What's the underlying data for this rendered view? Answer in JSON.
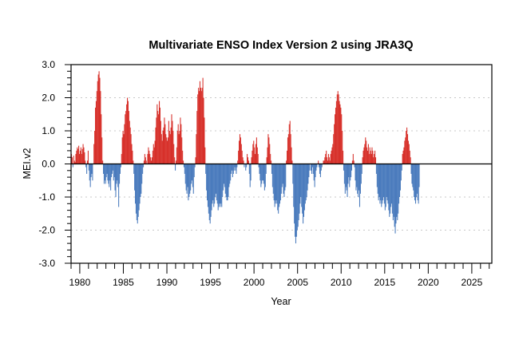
{
  "chart_data": {
    "type": "bar",
    "title": "Multivariate ENSO Index Version 2 using JRA3Q",
    "xlabel": "Year",
    "ylabel": "MEI.v2",
    "xlim": [
      1979,
      2027.3
    ],
    "ylim": [
      -3.0,
      3.0
    ],
    "x_tick_labels": [
      "1980",
      "1985",
      "1990",
      "1995",
      "2000",
      "2005",
      "2010",
      "2015",
      "2020",
      "2025"
    ],
    "x_ticks": [
      1980,
      1985,
      1990,
      1995,
      2000,
      2005,
      2010,
      2015,
      2020,
      2025
    ],
    "y_tick_labels": [
      "3.0",
      "2.0",
      "1.0",
      "0.0",
      "-1.0",
      "-2.0",
      "-3.0"
    ],
    "y_ticks": [
      3.0,
      2.0,
      1.0,
      0.0,
      -1.0,
      -2.0,
      -3.0
    ],
    "grid": "horizontal-dotted",
    "positive_color": "#d7302a",
    "negative_color": "#4a7bbd",
    "start_year": 1979,
    "values_per_year": 12,
    "series": [
      {
        "name": "MEI.v2",
        "values": [
          0.3,
          0.2,
          -0.1,
          0.25,
          0.1,
          0.05,
          0.3,
          0.4,
          0.5,
          0.45,
          0.55,
          0.3,
          0.4,
          0.5,
          0.3,
          0.45,
          0.6,
          0.5,
          0.35,
          0.1,
          -0.1,
          -0.3,
          0.1,
          0.4,
          -0.2,
          -0.5,
          -0.7,
          -0.4,
          -0.3,
          -0.5,
          0.0,
          0.6,
          1.0,
          1.7,
          1.9,
          2.2,
          2.5,
          2.7,
          2.8,
          2.6,
          2.2,
          1.5,
          0.8,
          0.1,
          -0.3,
          -0.6,
          -0.5,
          -0.6,
          -0.4,
          -0.3,
          -0.5,
          -0.6,
          -0.7,
          -0.5,
          -0.8,
          -0.4,
          -0.3,
          -0.2,
          -0.5,
          -0.4,
          -0.8,
          -1.0,
          -0.6,
          -0.5,
          -0.7,
          -1.3,
          -0.6,
          -0.3,
          -0.1,
          0.3,
          0.8,
          1.0,
          0.9,
          1.2,
          1.5,
          1.6,
          1.8,
          2.0,
          1.9,
          1.6,
          1.3,
          1.1,
          0.9,
          0.6,
          0.4,
          0.1,
          -0.3,
          -0.8,
          -1.2,
          -1.5,
          -1.7,
          -1.8,
          -1.6,
          -1.4,
          -1.2,
          -1.0,
          -0.9,
          -0.6,
          -0.3,
          -0.1,
          0.1,
          0.3,
          0.2,
          0.1,
          0.0,
          0.3,
          0.5,
          0.4,
          0.3,
          0.2,
          0.1,
          0.2,
          0.4,
          0.6,
          0.5,
          0.7,
          1.1,
          1.4,
          1.8,
          1.6,
          1.5,
          1.9,
          1.7,
          1.3,
          0.9,
          0.7,
          1.0,
          1.1,
          1.4,
          1.2,
          0.9,
          0.8,
          0.7,
          0.8,
          1.3,
          1.0,
          0.9,
          1.1,
          1.5,
          1.3,
          1.0,
          0.6,
          0.2,
          -0.2,
          0.1,
          0.5,
          1.0,
          1.2,
          0.9,
          1.0,
          1.4,
          1.2,
          0.8,
          0.4,
          0.1,
          -0.1,
          -0.3,
          -0.6,
          -0.8,
          -0.9,
          -0.7,
          -1.1,
          -1.0,
          -0.9,
          -0.8,
          -0.6,
          -0.5,
          -0.7,
          -0.9,
          -0.4,
          -0.1,
          0.2,
          0.9,
          1.6,
          2.1,
          2.3,
          2.2,
          2.5,
          2.3,
          2.2,
          2.3,
          2.6,
          2.0,
          1.4,
          0.5,
          -0.3,
          -0.8,
          -1.1,
          -1.3,
          -1.5,
          -1.7,
          -1.8,
          -1.6,
          -1.4,
          -1.2,
          -1.1,
          -1.3,
          -1.2,
          -1.0,
          -0.9,
          -1.1,
          -1.2,
          -1.4,
          -1.3,
          -1.2,
          -1.3,
          -1.2,
          -1.3,
          -1.0,
          -0.8,
          -0.6,
          -0.7,
          -0.9,
          -1.0,
          -1.1,
          -1.1,
          -1.0,
          -0.7,
          -0.6,
          -0.5,
          -0.3,
          -0.2,
          -0.4,
          -0.3,
          -0.2,
          -0.1,
          -0.2,
          -0.3,
          -0.1,
          0.1,
          0.4,
          0.7,
          0.9,
          0.8,
          0.6,
          0.4,
          0.2,
          0.1,
          -0.1,
          0.0,
          -0.2,
          -0.1,
          0.3,
          0.2,
          0.1,
          -0.3,
          -0.7,
          -0.5,
          0.2,
          0.4,
          0.6,
          0.7,
          0.5,
          0.3,
          0.6,
          0.8,
          0.5,
          0.3,
          -0.1,
          -0.3,
          -0.5,
          -0.7,
          -0.6,
          -0.5,
          -0.5,
          -0.6,
          -0.8,
          -0.7,
          -0.3,
          0.2,
          0.5,
          0.9,
          0.8,
          0.6,
          0.3,
          0.1,
          -0.3,
          -0.7,
          -0.9,
          -1.1,
          -1.3,
          -1.2,
          -1.1,
          -1.2,
          -1.4,
          -1.5,
          -1.3,
          -1.2,
          -1.1,
          -0.9,
          -0.7,
          -0.6,
          -0.9,
          -1.0,
          -0.8,
          -0.7,
          0.1,
          0.4,
          0.8,
          0.9,
          1.2,
          1.3,
          0.9,
          0.5,
          0.1,
          -0.6,
          -1.3,
          -1.8,
          -2.2,
          -2.4,
          -2.2,
          -2.0,
          -1.9,
          -1.7,
          -1.5,
          -1.2,
          -1.0,
          -1.3,
          -1.5,
          -1.8,
          -1.6,
          -1.4,
          -1.2,
          -1.1,
          -1.0,
          -0.8,
          -0.6,
          -0.4,
          -0.2,
          0.0,
          -0.2,
          -0.3,
          -0.1,
          -0.3,
          -0.5,
          -0.7,
          -0.4,
          -0.2,
          -0.1,
          0.0,
          0.1,
          -0.1,
          -0.3,
          -0.4,
          -0.2,
          -0.1,
          0.0,
          0.1,
          0.1,
          0.2,
          0.3,
          0.4,
          0.2,
          0.1,
          0.3,
          0.2,
          0.1,
          0.3,
          0.4,
          0.5,
          0.6,
          0.9,
          1.2,
          1.5,
          1.7,
          1.9,
          2.1,
          2.2,
          2.1,
          1.9,
          1.8,
          1.7,
          1.5,
          1.0,
          0.4,
          -0.2,
          -0.6,
          -0.9,
          -0.7,
          -0.8,
          -1.0,
          -0.6,
          -0.4,
          -0.7,
          -0.5,
          -0.4,
          -0.2,
          0.1,
          0.3,
          0.1,
          -0.1,
          -0.5,
          -0.8,
          -0.7,
          -0.9,
          -1.0,
          -0.8,
          -1.3,
          -0.9,
          -0.6,
          -0.3,
          0.2,
          0.4,
          0.5,
          0.6,
          0.8,
          0.7,
          0.5,
          0.4,
          0.6,
          0.3,
          0.5,
          0.4,
          0.3,
          0.5,
          0.4,
          0.2,
          0.3,
          0.4,
          0.2,
          -0.3,
          -0.7,
          -0.9,
          -1.1,
          -1.0,
          -1.2,
          -1.1,
          -1.3,
          -1.2,
          -1.1,
          -1.0,
          -1.2,
          -1.4,
          -1.3,
          -1.0,
          -1.1,
          -1.2,
          -1.4,
          -1.6,
          -1.5,
          -1.3,
          -1.2,
          -1.5,
          -1.7,
          -1.6,
          -1.9,
          -2.1,
          -1.8,
          -1.6,
          -1.7,
          -1.5,
          -1.2,
          -1.0,
          -0.8,
          -0.5,
          -0.2,
          0.3,
          0.4,
          0.5,
          0.7,
          0.8,
          1.0,
          1.1,
          0.9,
          0.7,
          0.6,
          0.4,
          0.2,
          -0.3,
          -0.6,
          -0.7,
          -0.8,
          -1.0,
          -1.1,
          -1.2,
          -1.0,
          -0.9,
          -1.1,
          -1.2,
          -0.7
        ]
      }
    ]
  }
}
